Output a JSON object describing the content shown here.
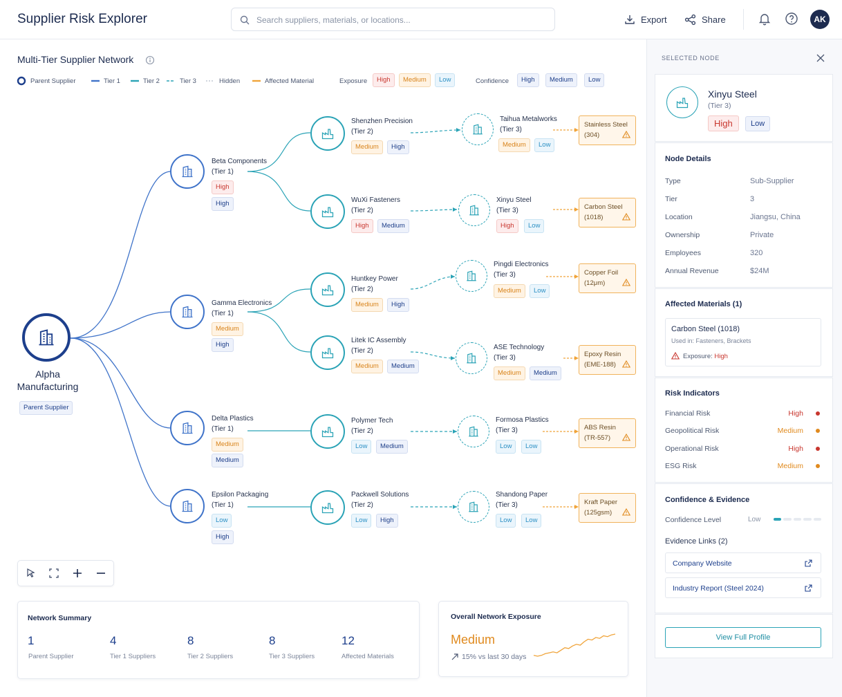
{
  "header": {
    "title": "Supplier Risk Explorer",
    "search_placeholder": "Search suppliers, materials, or locations...",
    "export_label": "Export",
    "share_label": "Share",
    "avatar_initials": "AK"
  },
  "network": {
    "title": "Multi-Tier Supplier Network",
    "legend": {
      "parent": "Parent Supplier",
      "tier1": "Tier 1",
      "tier2": "Tier 2",
      "tier3": "Tier 3",
      "hidden": "Hidden",
      "affected": "Affected Material",
      "exposure_label": "Exposure",
      "exposure_levels": [
        "High",
        "Medium",
        "Low"
      ],
      "confidence_label": "Confidence",
      "confidence_levels": [
        "High",
        "Medium",
        "Low"
      ]
    },
    "parent": {
      "name_line1": "Alpha",
      "name_line2": "Manufacturing",
      "tag": "Parent Supplier"
    },
    "tier1": [
      {
        "name": "Beta Components",
        "tier": "(Tier 1)",
        "exposure": "High",
        "confidence": "High"
      },
      {
        "name": "Gamma Electronics",
        "tier": "(Tier 1)",
        "exposure": "Medium",
        "confidence": "High"
      },
      {
        "name": "Delta Plastics",
        "tier": "(Tier 1)",
        "exposure": "Medium",
        "confidence": "Medium"
      },
      {
        "name": "Epsilon Packaging",
        "tier": "(Tier 1)",
        "exposure": "Low",
        "confidence": "High"
      }
    ],
    "tier2": [
      {
        "name": "Shenzhen Precision",
        "tier": "(Tier 2)",
        "exposure": "Medium",
        "confidence": "High"
      },
      {
        "name": "WuXi Fasteners",
        "tier": "(Tier 2)",
        "exposure": "High",
        "confidence": "Medium"
      },
      {
        "name": "Huntkey Power",
        "tier": "(Tier 2)",
        "exposure": "Medium",
        "confidence": "High"
      },
      {
        "name": "Litek IC Assembly",
        "tier": "(Tier 2)",
        "exposure": "Medium",
        "confidence": "Medium"
      },
      {
        "name": "Polymer Tech",
        "tier": "(Tier 2)",
        "exposure": "Low",
        "confidence": "Medium"
      },
      {
        "name": "Packwell Solutions",
        "tier": "(Tier 2)",
        "exposure": "Low",
        "confidence": "High"
      }
    ],
    "tier3": [
      {
        "name": "Taihua Metalworks",
        "tier": "(Tier 3)",
        "exposure": "Medium",
        "confidence": "Low"
      },
      {
        "name": "Xinyu Steel",
        "tier": "(Tier 3)",
        "exposure": "High",
        "confidence": "Low"
      },
      {
        "name": "Pingdi Electronics",
        "tier": "(Tier 3)",
        "exposure": "Medium",
        "confidence": "Low"
      },
      {
        "name": "ASE Technology",
        "tier": "(Tier 3)",
        "exposure": "Medium",
        "confidence": "Medium"
      },
      {
        "name": "Formosa Plastics",
        "tier": "(Tier 3)",
        "exposure": "Low",
        "confidence": "Low"
      },
      {
        "name": "Shandong Paper",
        "tier": "(Tier 3)",
        "exposure": "Low",
        "confidence": "Low"
      }
    ],
    "materials": [
      {
        "line1": "Stainless Steel",
        "line2": "(304)"
      },
      {
        "line1": "Carbon Steel",
        "line2": "(1018)"
      },
      {
        "line1": "Copper Foil",
        "line2": "(12μm)"
      },
      {
        "line1": "Epoxy Resin",
        "line2": "(EME-188)"
      },
      {
        "line1": "ABS Resin",
        "line2": "(TR-557)"
      },
      {
        "line1": "Kraft Paper",
        "line2": "(125gsm)"
      }
    ]
  },
  "summary": {
    "title": "Network Summary",
    "stats": [
      {
        "value": "1",
        "label": "Parent Supplier"
      },
      {
        "value": "4",
        "label": "Tier 1 Suppliers"
      },
      {
        "value": "8",
        "label": "Tier 2 Suppliers"
      },
      {
        "value": "8",
        "label": "Tier 3 Suppliers"
      },
      {
        "value": "12",
        "label": "Affected Materials"
      }
    ]
  },
  "exposure_card": {
    "title": "Overall Network Exposure",
    "level": "Medium",
    "trend": "15% vs last 30 days",
    "sparkline": [
      30,
      31,
      30,
      28,
      27,
      26,
      27,
      24,
      21,
      22,
      19,
      17,
      18,
      14,
      11,
      12,
      9,
      10,
      7,
      8,
      6,
      5
    ]
  },
  "panel": {
    "header": "SELECTED NODE",
    "node_name": "Xinyu Steel",
    "node_tier": "(Tier 3)",
    "exposure": "High",
    "confidence": "Low",
    "details_title": "Node Details",
    "details": [
      {
        "key": "Type",
        "value": "Sub-Supplier"
      },
      {
        "key": "Tier",
        "value": "3"
      },
      {
        "key": "Location",
        "value": "Jiangsu, China"
      },
      {
        "key": "Ownership",
        "value": "Private"
      },
      {
        "key": "Employees",
        "value": "320"
      },
      {
        "key": "Annual Revenue",
        "value": "$24M"
      }
    ],
    "materials_title": "Affected Materials (1)",
    "material_name": "Carbon Steel (1018)",
    "material_used": "Used in: Fasteners, Brackets",
    "material_exposure_label": "Exposure:",
    "material_exposure_value": "High",
    "risk_title": "Risk Indicators",
    "risks": [
      {
        "key": "Financial Risk",
        "value": "High",
        "color": "#c8362e"
      },
      {
        "key": "Geopolitical Risk",
        "value": "Medium",
        "color": "#e08a1e"
      },
      {
        "key": "Operational Risk",
        "value": "High",
        "color": "#c8362e"
      },
      {
        "key": "ESG Risk",
        "value": "Medium",
        "color": "#e08a1e"
      }
    ],
    "confidence_title": "Confidence & Evidence",
    "confidence_label": "Confidence Level",
    "confidence_value": "Low",
    "confidence_fraction": 0.2,
    "evidence_title": "Evidence Links (2)",
    "links": [
      "Company Website",
      "Industry Report (Steel 2024)"
    ],
    "profile_button": "View Full Profile"
  },
  "colors": {
    "tier1": "#3f73c9",
    "tier2": "#2aa3b6",
    "parent": "#1d3f8c",
    "affected": "#f0a43a",
    "high": "#c8362e",
    "medium": "#d8841c",
    "low": "#2a8fc4"
  }
}
